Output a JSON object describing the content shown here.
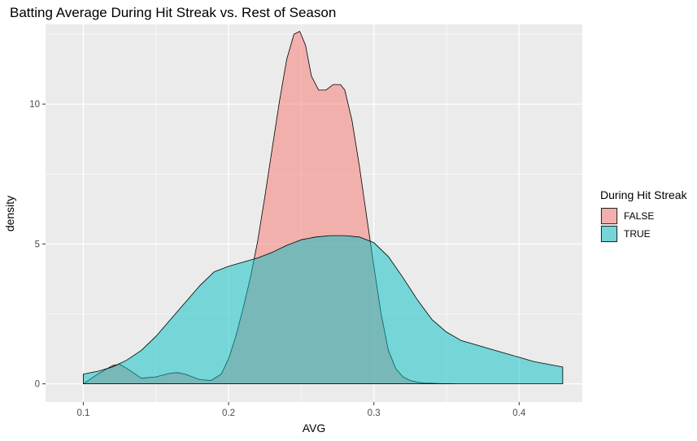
{
  "chart_data": {
    "type": "area",
    "title": "Batting Average During Hit Streak vs. Rest of Season",
    "xlabel": "AVG",
    "ylabel": "density",
    "xlim": [
      0.074,
      0.4435
    ],
    "ylim": [
      -0.65,
      12.85
    ],
    "x_ticks": [
      0.1,
      0.2,
      0.3,
      0.4
    ],
    "x_tick_labels": [
      "0.1",
      "0.2",
      "0.3",
      "0.4"
    ],
    "y_ticks": [
      0,
      5,
      10
    ],
    "y_tick_labels": [
      "0",
      "5",
      "10"
    ],
    "grid": true,
    "legend": {
      "title": "During Hit Streak",
      "position": "right",
      "entries": [
        "FALSE",
        "TRUE"
      ]
    },
    "colors": {
      "FALSE": "#F8766D",
      "TRUE": "#00BFC4",
      "panel": "#EBEBEB",
      "grid": "#FFFFFF",
      "outline": "#000000"
    },
    "series": [
      {
        "name": "FALSE",
        "x": [
          0.1,
          0.11,
          0.12,
          0.125,
          0.13,
          0.14,
          0.15,
          0.16,
          0.165,
          0.17,
          0.18,
          0.188,
          0.195,
          0.2,
          0.205,
          0.21,
          0.215,
          0.22,
          0.225,
          0.23,
          0.235,
          0.24,
          0.245,
          0.249,
          0.253,
          0.257,
          0.262,
          0.267,
          0.272,
          0.277,
          0.28,
          0.285,
          0.29,
          0.295,
          0.3,
          0.305,
          0.31,
          0.315,
          0.32,
          0.325,
          0.33,
          0.335,
          0.34,
          0.345,
          0.35,
          0.356
        ],
        "y": [
          0.0,
          0.35,
          0.65,
          0.7,
          0.55,
          0.2,
          0.25,
          0.38,
          0.4,
          0.35,
          0.15,
          0.12,
          0.35,
          0.9,
          1.7,
          2.7,
          3.8,
          5.1,
          6.7,
          8.4,
          10.1,
          11.6,
          12.5,
          12.6,
          12.1,
          11.0,
          10.5,
          10.5,
          10.7,
          10.7,
          10.5,
          9.4,
          7.8,
          6.0,
          4.2,
          2.5,
          1.2,
          0.55,
          0.25,
          0.12,
          0.06,
          0.03,
          0.02,
          0.01,
          0.005,
          0.0
        ]
      },
      {
        "name": "TRUE",
        "x": [
          0.1,
          0.11,
          0.12,
          0.13,
          0.14,
          0.15,
          0.16,
          0.17,
          0.18,
          0.19,
          0.2,
          0.21,
          0.22,
          0.23,
          0.24,
          0.25,
          0.26,
          0.27,
          0.28,
          0.29,
          0.3,
          0.31,
          0.32,
          0.33,
          0.34,
          0.35,
          0.36,
          0.37,
          0.38,
          0.39,
          0.4,
          0.41,
          0.42,
          0.43
        ],
        "y": [
          0.35,
          0.45,
          0.6,
          0.85,
          1.2,
          1.7,
          2.3,
          2.9,
          3.5,
          4.0,
          4.2,
          4.35,
          4.5,
          4.7,
          4.95,
          5.15,
          5.25,
          5.3,
          5.3,
          5.25,
          5.05,
          4.55,
          3.8,
          3.0,
          2.3,
          1.85,
          1.55,
          1.4,
          1.25,
          1.1,
          0.95,
          0.8,
          0.7,
          0.6
        ]
      }
    ]
  }
}
